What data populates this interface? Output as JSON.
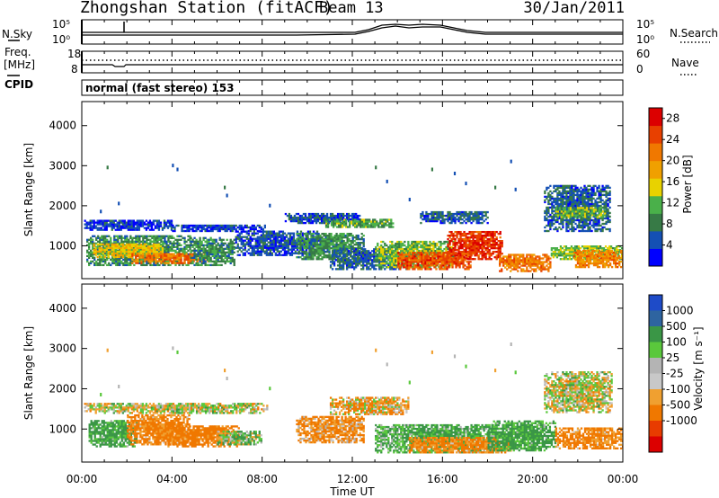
{
  "header": {
    "station": "Zhongshan Station (fitACF)",
    "beam": "Beam 13",
    "date": "30/Jan/2011"
  },
  "noise_panel": {
    "left_label": "N.Sky",
    "right_label": "N.Search",
    "top_tick": "10^5",
    "bottom_tick": "10^0"
  },
  "freq_panel": {
    "left_label_1": "Freq.",
    "left_label_2": "[MHz]",
    "left_top": "18",
    "left_bottom": "8",
    "right_label": "Nave",
    "right_top": "60",
    "right_bottom": "0"
  },
  "cpid": {
    "label": "CPID",
    "text": "normal (fast stereo) 153"
  },
  "x_axis": {
    "title": "Time UT",
    "ticks": [
      "00:00",
      "04:00",
      "08:00",
      "12:00",
      "16:00",
      "20:00",
      "00:00"
    ]
  },
  "colors": {
    "power": [
      "#0000ff",
      "#1450b4",
      "#377a46",
      "#4ab04a",
      "#e8d200",
      "#f0a000",
      "#f07800",
      "#e84000",
      "#dc0000"
    ],
    "velocity": [
      "#1e4bc8",
      "#2e64a0",
      "#3a9646",
      "#5ac83c",
      "#b4b4b4",
      "#c8c8c8",
      "#f0a030",
      "#f07800",
      "#e83c00",
      "#dc0000"
    ]
  },
  "chart_data": [
    {
      "type": "heatmap",
      "title": "",
      "xlabel": "Time UT",
      "ylabel": "Slant Range [km]",
      "xlim": [
        "00:00",
        "24:00"
      ],
      "ylim": [
        180,
        4600
      ],
      "yticks": [
        "1000",
        "2000",
        "3000",
        "4000"
      ],
      "colorbar": {
        "label": "Power [dB]",
        "ticks": [
          "4",
          "8",
          "12",
          "16",
          "20",
          "24",
          "28"
        ],
        "range": [
          0,
          30
        ]
      },
      "regions": [
        {
          "t0": 0.1,
          "t1": 4.0,
          "r0": 1380,
          "r1": 1640,
          "value": 4
        },
        {
          "t0": 4.0,
          "t1": 8.2,
          "r0": 1350,
          "r1": 1530,
          "value": 4
        },
        {
          "t0": 0.2,
          "t1": 4.8,
          "r0": 500,
          "r1": 1250,
          "value": 9
        },
        {
          "t0": 0.5,
          "t1": 3.6,
          "r0": 700,
          "r1": 1050,
          "value": 16
        },
        {
          "t0": 2.2,
          "t1": 5.6,
          "r0": 550,
          "r1": 800,
          "value": 22
        },
        {
          "t0": 4.8,
          "t1": 6.8,
          "r0": 500,
          "r1": 1200,
          "value": 9
        },
        {
          "t0": 6.8,
          "t1": 10.5,
          "r0": 750,
          "r1": 1350,
          "value": 5
        },
        {
          "t0": 9.0,
          "t1": 12.3,
          "r0": 1550,
          "r1": 1800,
          "value": 5
        },
        {
          "t0": 10.8,
          "t1": 13.8,
          "r0": 1450,
          "r1": 1640,
          "value": 11
        },
        {
          "t0": 9.5,
          "t1": 12.5,
          "r0": 650,
          "r1": 1300,
          "value": 9
        },
        {
          "t0": 11.0,
          "t1": 14.5,
          "r0": 400,
          "r1": 900,
          "value": 6
        },
        {
          "t0": 13.0,
          "t1": 16.5,
          "r0": 450,
          "r1": 1100,
          "value": 12
        },
        {
          "t0": 14.0,
          "t1": 17.2,
          "r0": 400,
          "r1": 820,
          "value": 24
        },
        {
          "t0": 16.2,
          "t1": 18.6,
          "r0": 650,
          "r1": 1350,
          "value": 26
        },
        {
          "t0": 18.5,
          "t1": 20.8,
          "r0": 350,
          "r1": 800,
          "value": 22
        },
        {
          "t0": 15.0,
          "t1": 18.0,
          "r0": 1550,
          "r1": 1850,
          "value": 6
        },
        {
          "t0": 20.5,
          "t1": 23.4,
          "r0": 1350,
          "r1": 2500,
          "value": 6
        },
        {
          "t0": 21.0,
          "t1": 23.2,
          "r0": 1700,
          "r1": 1950,
          "value": 12
        },
        {
          "t0": 20.8,
          "t1": 24.0,
          "r0": 650,
          "r1": 1000,
          "value": 13
        },
        {
          "t0": 21.8,
          "t1": 24.0,
          "r0": 450,
          "r1": 900,
          "value": 21
        }
      ]
    },
    {
      "type": "heatmap",
      "title": "",
      "xlabel": "Time UT",
      "ylabel": "Slant Range [km]",
      "xlim": [
        "00:00",
        "24:00"
      ],
      "ylim": [
        180,
        4600
      ],
      "yticks": [
        "1000",
        "2000",
        "3000",
        "4000"
      ],
      "colorbar": {
        "label": "Velocity [m s^-1]",
        "ticks": [
          "1000",
          "500",
          "100",
          "25",
          "-25",
          "-100",
          "-500",
          "-1000"
        ],
        "range": [
          -1200,
          1200
        ]
      },
      "regions": [
        {
          "t0": 0.1,
          "t1": 8.2,
          "r0": 1380,
          "r1": 1640,
          "value": 0
        },
        {
          "t0": 0.3,
          "t1": 2.4,
          "r0": 550,
          "r1": 1200,
          "value": 150
        },
        {
          "t0": 2.0,
          "t1": 4.8,
          "r0": 600,
          "r1": 1350,
          "value": -150
        },
        {
          "t0": 3.8,
          "t1": 7.0,
          "r0": 550,
          "r1": 1050,
          "value": -200
        },
        {
          "t0": 6.0,
          "t1": 8.0,
          "r0": 600,
          "r1": 950,
          "value": 80
        },
        {
          "t0": 9.5,
          "t1": 12.5,
          "r0": 650,
          "r1": 1300,
          "value": -120
        },
        {
          "t0": 11.0,
          "t1": 14.5,
          "r0": 1350,
          "r1": 1800,
          "value": -80
        },
        {
          "t0": 13.0,
          "t1": 18.5,
          "r0": 400,
          "r1": 1100,
          "value": 120
        },
        {
          "t0": 14.5,
          "t1": 19.0,
          "r0": 400,
          "r1": 800,
          "value": -150
        },
        {
          "t0": 18.0,
          "t1": 21.0,
          "r0": 450,
          "r1": 1200,
          "value": 150
        },
        {
          "t0": 20.5,
          "t1": 23.5,
          "r0": 1400,
          "r1": 2400,
          "value": 0
        },
        {
          "t0": 21.0,
          "t1": 24.0,
          "r0": 500,
          "r1": 1000,
          "value": -150
        }
      ]
    }
  ]
}
